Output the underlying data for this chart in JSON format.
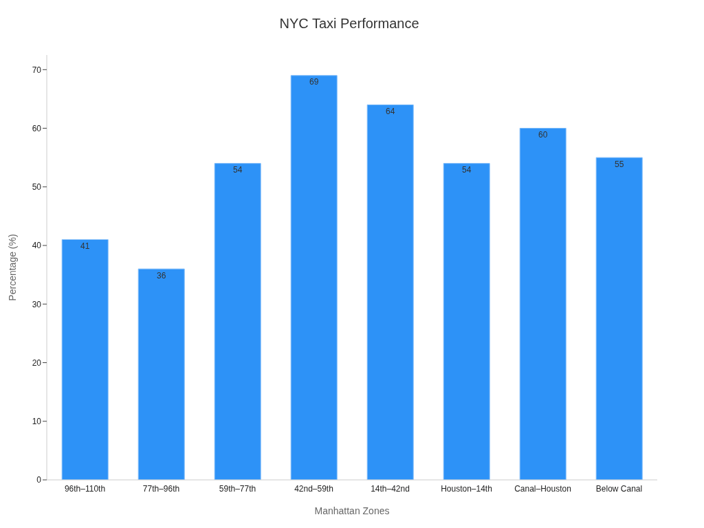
{
  "chart_data": {
    "type": "bar",
    "title": "NYC Taxi Performance",
    "xlabel": "Manhattan Zones",
    "ylabel": "Percentage (%)",
    "categories": [
      "96th–110th",
      "77th–96th",
      "59th–77th",
      "42nd–59th",
      "14th–42nd",
      "Houston–14th",
      "Canal–Houston",
      "Below Canal"
    ],
    "values": [
      41,
      36,
      54,
      69,
      64,
      54,
      60,
      55
    ],
    "color": "#2d92f7",
    "ylim": [
      0,
      72.5
    ],
    "yticks": [
      0,
      10,
      20,
      30,
      40,
      50,
      60,
      70
    ],
    "grid": false,
    "data_labels": true
  }
}
